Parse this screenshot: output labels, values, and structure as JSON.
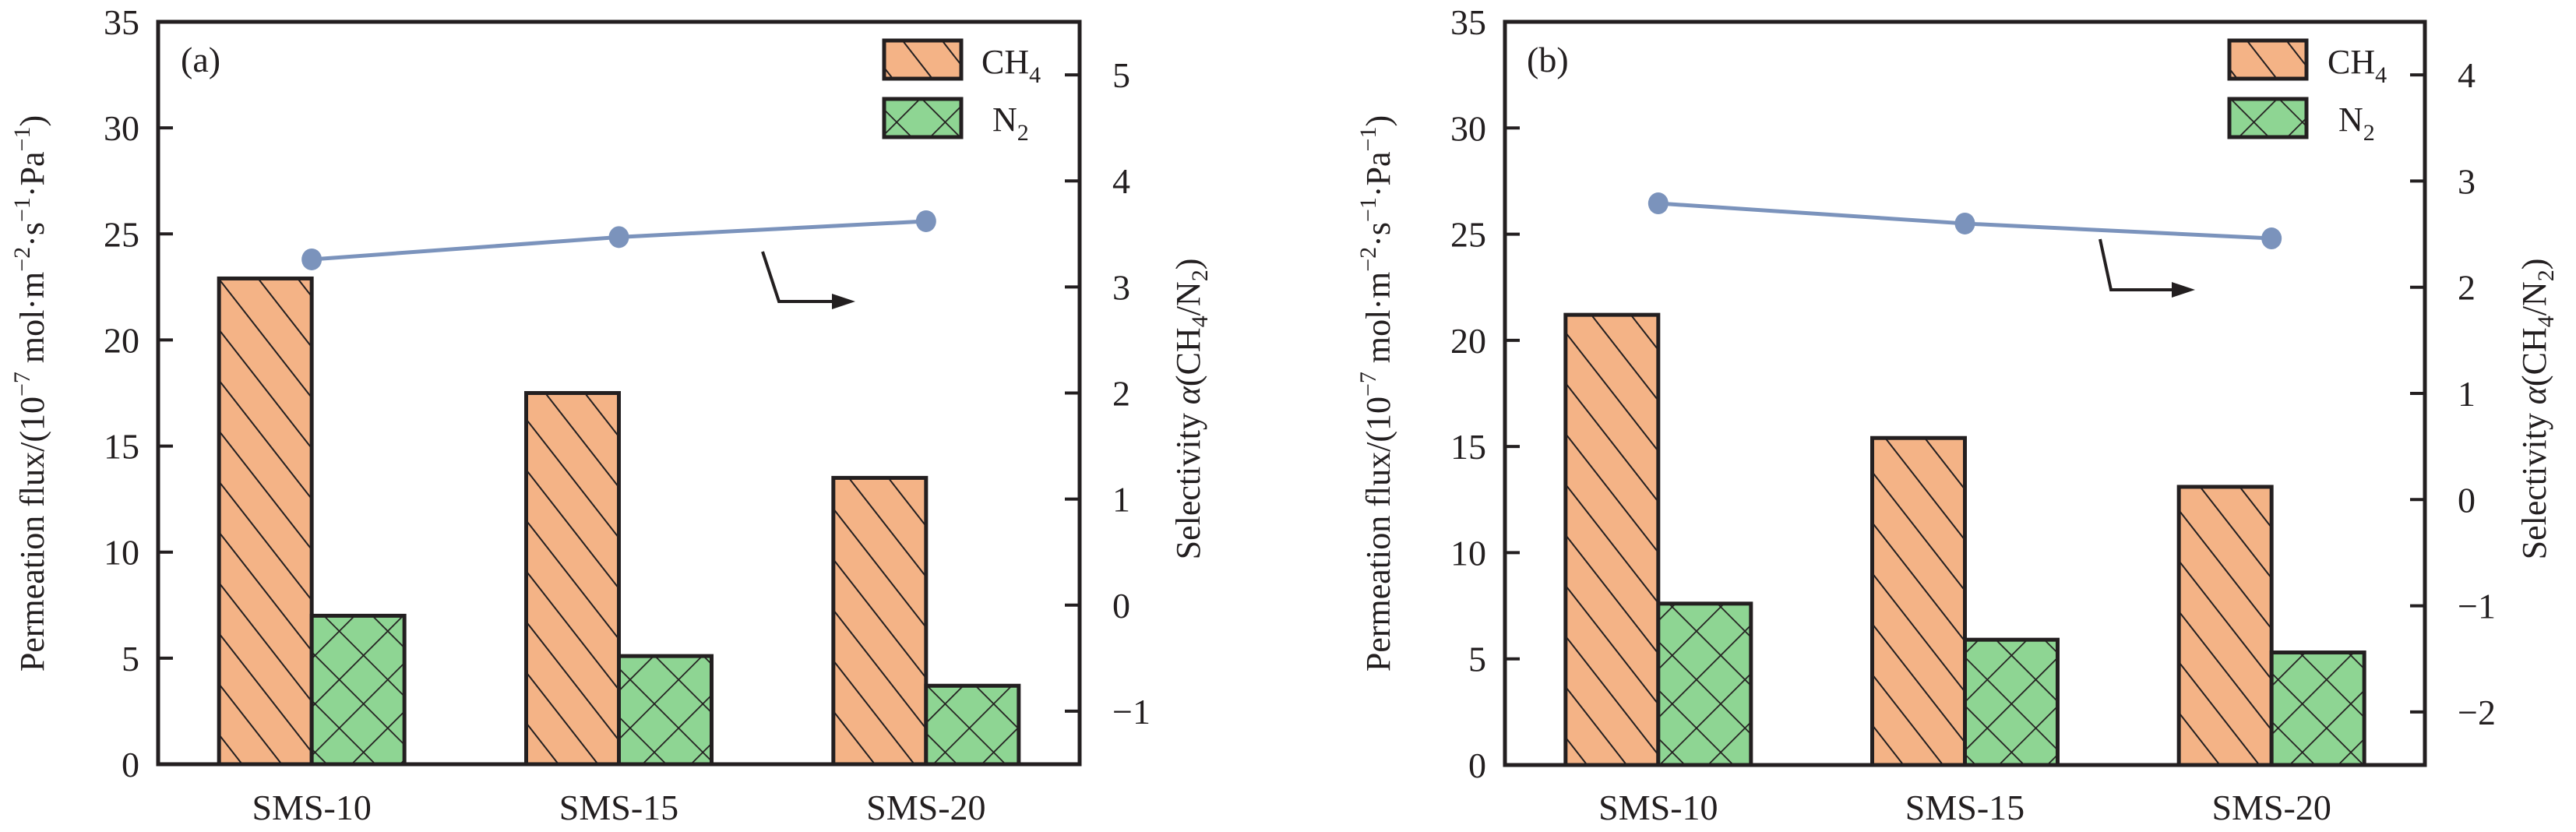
{
  "chart_data": [
    {
      "type": "bar",
      "panel": "(a)",
      "categories": [
        "SMS-10",
        "SMS-15",
        "SMS-20"
      ],
      "series": [
        {
          "name": "CH4",
          "axis": "left",
          "color": "#f4b386",
          "pattern": "diagonal-hatch",
          "values": [
            22.9,
            17.5,
            13.5
          ]
        },
        {
          "name": "N2",
          "axis": "left",
          "color": "#8ed593",
          "pattern": "cross-hatch",
          "values": [
            7.0,
            5.1,
            3.7
          ]
        },
        {
          "name": "Selectivity α(CH4/N2)",
          "axis": "right",
          "kind": "line-marker",
          "color": "#7b93bc",
          "values": [
            3.26,
            3.47,
            3.62
          ]
        }
      ],
      "ylabel": "Permeation flux/(10⁻⁷ mol·m⁻²·s⁻¹·Pa⁻¹)",
      "ylim": [
        0,
        35
      ],
      "yticks": [
        0,
        5,
        10,
        15,
        20,
        25,
        30,
        35
      ],
      "y2label": "Selectivity α(CH4/N2)",
      "y2lim": [
        -1.5,
        5.5
      ],
      "y2ticks": [
        -1,
        0,
        1,
        2,
        3,
        4,
        5
      ],
      "legend": [
        "CH4",
        "N2"
      ],
      "legend_position": "top-right",
      "annotation": "arrow pointing to right axis",
      "grid": false
    },
    {
      "type": "bar",
      "panel": "(b)",
      "categories": [
        "SMS-10",
        "SMS-15",
        "SMS-20"
      ],
      "series": [
        {
          "name": "CH4",
          "axis": "left",
          "color": "#f4b386",
          "pattern": "diagonal-hatch",
          "values": [
            21.2,
            15.4,
            13.1
          ]
        },
        {
          "name": "N2",
          "axis": "left",
          "color": "#8ed593",
          "pattern": "cross-hatch",
          "values": [
            7.6,
            5.9,
            5.3
          ]
        },
        {
          "name": "Selectivity α(CH4/N2)",
          "axis": "right",
          "kind": "line-marker",
          "color": "#7b93bc",
          "values": [
            2.79,
            2.6,
            2.46
          ]
        }
      ],
      "ylabel": "Permeation flux/(10⁻⁷ mol·m⁻²·s⁻¹·Pa⁻¹)",
      "ylim": [
        0,
        35
      ],
      "yticks": [
        0,
        5,
        10,
        15,
        20,
        25,
        30,
        35
      ],
      "y2label": "Selectivity α(CH4/N2)",
      "y2lim": [
        -2.5,
        4.5
      ],
      "y2ticks": [
        -2,
        -1,
        0,
        1,
        2,
        3,
        4
      ],
      "legend": [
        "CH4",
        "N2"
      ],
      "legend_position": "top-right",
      "annotation": "arrow pointing to right axis",
      "grid": false
    }
  ],
  "labels": {
    "ylabel_main": "Permeation flux/(10",
    "ylabel_exp": "−7",
    "ylabel_unit": " mol·m",
    "ylabel_m_exp": "−2",
    "ylabel_s": "·s",
    "ylabel_s_exp": "−1",
    "ylabel_pa": "·Pa",
    "ylabel_pa_exp": "−1",
    "ylabel_close": ")",
    "y2label_main": "Selectivity ",
    "y2label_alpha": "α",
    "y2label_open": "(CH",
    "y2label_sub4": "4",
    "y2label_mid": "/N",
    "y2label_sub2": "2",
    "y2label_close": ")",
    "legend_ch4": "CH",
    "legend_ch4_sub": "4",
    "legend_n2": "N",
    "legend_n2_sub": "2"
  }
}
